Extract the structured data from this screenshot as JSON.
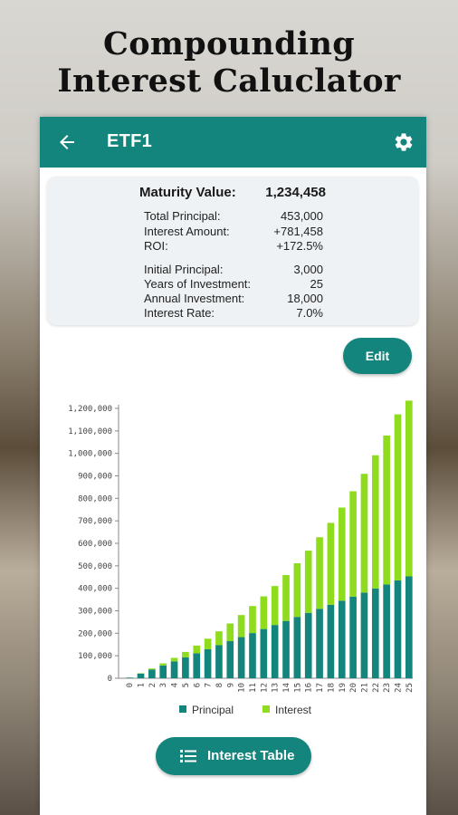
{
  "hero": {
    "line1": "Compounding",
    "line2": "Interest Caluclator"
  },
  "appbar": {
    "title": "ETF1",
    "back_icon": "arrow-back-icon",
    "settings_icon": "gear-icon",
    "color": "#13857c"
  },
  "summary": {
    "maturity_label": "Maturity Value:",
    "maturity_value": "1,234,458",
    "group1": [
      {
        "label": "Total Principal:",
        "value": "453,000"
      },
      {
        "label": "Interest Amount:",
        "value": "+781,458"
      },
      {
        "label": "ROI:",
        "value": "+172.5%"
      }
    ],
    "group2": [
      {
        "label": "Initial Principal:",
        "value": "3,000"
      },
      {
        "label": "Years of Investment:",
        "value": "25"
      },
      {
        "label": "Annual Investment:",
        "value": "18,000"
      },
      {
        "label": "Interest Rate:",
        "value": "7.0%"
      }
    ]
  },
  "edit_button": "Edit",
  "interest_table_button": {
    "label": "Interest Table",
    "icon": "list-icon"
  },
  "chart_data": {
    "type": "bar",
    "stacked": true,
    "categories": [
      "0",
      "1",
      "2",
      "3",
      "4",
      "5",
      "6",
      "7",
      "8",
      "9",
      "10",
      "11",
      "12",
      "13",
      "14",
      "15",
      "16",
      "17",
      "18",
      "19",
      "20",
      "21",
      "22",
      "23",
      "24",
      "25"
    ],
    "series": [
      {
        "name": "Principal",
        "color": "#13857c",
        "values": [
          3000,
          21000,
          39000,
          57000,
          75000,
          93000,
          111000,
          129000,
          147000,
          165000,
          183000,
          201000,
          219000,
          237000,
          255000,
          273000,
          291000,
          309000,
          327000,
          345000,
          363000,
          381000,
          399000,
          417000,
          435000,
          453000
        ]
      },
      {
        "name": "Interest",
        "color": "#8fdc1f",
        "values": [
          0,
          1470,
          4523,
          9252,
          15771,
          24165,
          34539,
          47000,
          61671,
          78675,
          98157,
          120271,
          145179,
          173060,
          204097,
          238489,
          276448,
          318200,
          363979,
          414040,
          468650,
          528092,
          592662,
          662679,
          738477,
          781458
        ]
      }
    ],
    "y_ticks": [
      0,
      100000,
      200000,
      300000,
      400000,
      500000,
      600000,
      700000,
      800000,
      900000,
      1000000,
      1100000,
      1200000
    ],
    "y_tick_labels": [
      "0",
      "100,000",
      "200,000",
      "300,000",
      "400,000",
      "500,000",
      "600,000",
      "700,000",
      "800,000",
      "900,000",
      "1,000,000",
      "1,100,000",
      "1,200,000"
    ],
    "ylim": [
      0,
      1200000
    ],
    "legend_position": "bottom-center",
    "grid": false
  }
}
